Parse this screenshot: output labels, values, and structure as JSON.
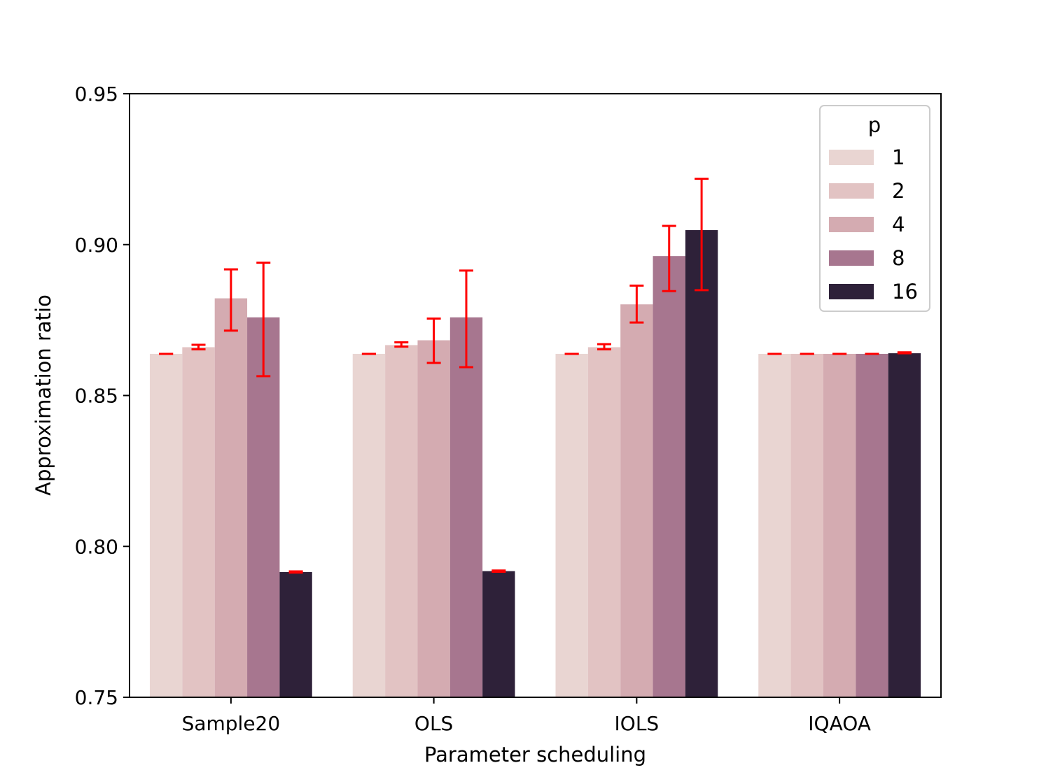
{
  "chart_data": {
    "type": "bar",
    "xlabel": "Parameter scheduling",
    "ylabel": "Approximation ratio",
    "ylim": [
      0.75,
      0.95
    ],
    "yticks": [
      "0.75",
      "0.80",
      "0.85",
      "0.90",
      "0.95"
    ],
    "ytick_values": [
      0.75,
      0.8,
      0.85,
      0.9,
      0.95
    ],
    "categories": [
      "Sample20",
      "OLS",
      "IOLS",
      "IQAOA"
    ],
    "legend": {
      "title": "p",
      "placement": "upper right"
    },
    "error_bar_color": "#ff0000",
    "grid": false,
    "series": [
      {
        "name": "1",
        "color": "#e9d5d2",
        "values": [
          0.8638,
          0.8638,
          0.8638,
          0.8638
        ],
        "err_low": [
          0.8638,
          0.8638,
          0.8638,
          0.8638
        ],
        "err_high": [
          0.8638,
          0.8638,
          0.8638,
          0.8638
        ]
      },
      {
        "name": "2",
        "color": "#e2c3c3",
        "values": [
          0.866,
          0.8667,
          0.866,
          0.8638
        ],
        "err_low": [
          0.8653,
          0.8662,
          0.8653,
          0.8638
        ],
        "err_high": [
          0.8668,
          0.8676,
          0.867,
          0.8638
        ]
      },
      {
        "name": "4",
        "color": "#d4abb1",
        "values": [
          0.8822,
          0.8683,
          0.8802,
          0.8638
        ],
        "err_low": [
          0.8715,
          0.8608,
          0.8742,
          0.8638
        ],
        "err_high": [
          0.8918,
          0.8755,
          0.8864,
          0.8638
        ]
      },
      {
        "name": "8",
        "color": "#a7768f",
        "values": [
          0.8759,
          0.8759,
          0.8962,
          0.8638
        ],
        "err_low": [
          0.8564,
          0.8594,
          0.8846,
          0.8638
        ],
        "err_high": [
          0.894,
          0.8914,
          0.9062,
          0.8638
        ]
      },
      {
        "name": "16",
        "color": "#2e2139",
        "values": [
          0.7915,
          0.7918,
          0.9048,
          0.864
        ],
        "err_low": [
          0.7913,
          0.7916,
          0.8849,
          0.864
        ],
        "err_high": [
          0.7917,
          0.792,
          0.9218,
          0.8643
        ]
      }
    ]
  }
}
